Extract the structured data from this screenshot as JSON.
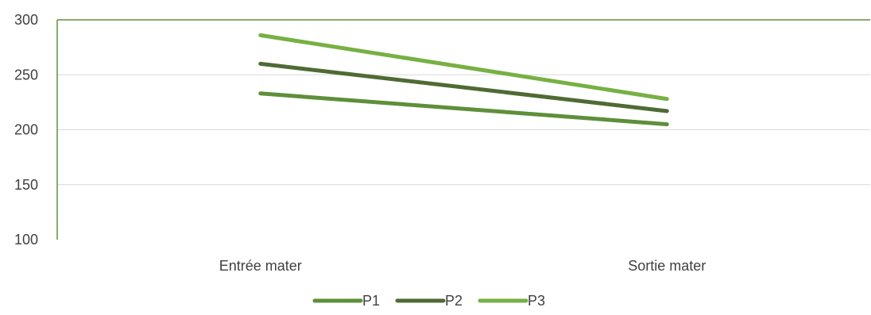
{
  "chart_data": {
    "type": "line",
    "categories": [
      "Entrée mater",
      "Sortie mater"
    ],
    "series": [
      {
        "name": "P1",
        "values": [
          233,
          205
        ],
        "color": "#5e8f3a"
      },
      {
        "name": "P2",
        "values": [
          260,
          217
        ],
        "color": "#4f6b34"
      },
      {
        "name": "P3",
        "values": [
          286,
          228
        ],
        "color": "#77b043"
      }
    ],
    "ylim": [
      100,
      300
    ],
    "yticks": [
      "100",
      "150",
      "200",
      "250",
      "300"
    ],
    "grid": true,
    "legend": "bottom",
    "axis_color": "#5e8f3a",
    "grid_color": "#d9d9d9"
  }
}
